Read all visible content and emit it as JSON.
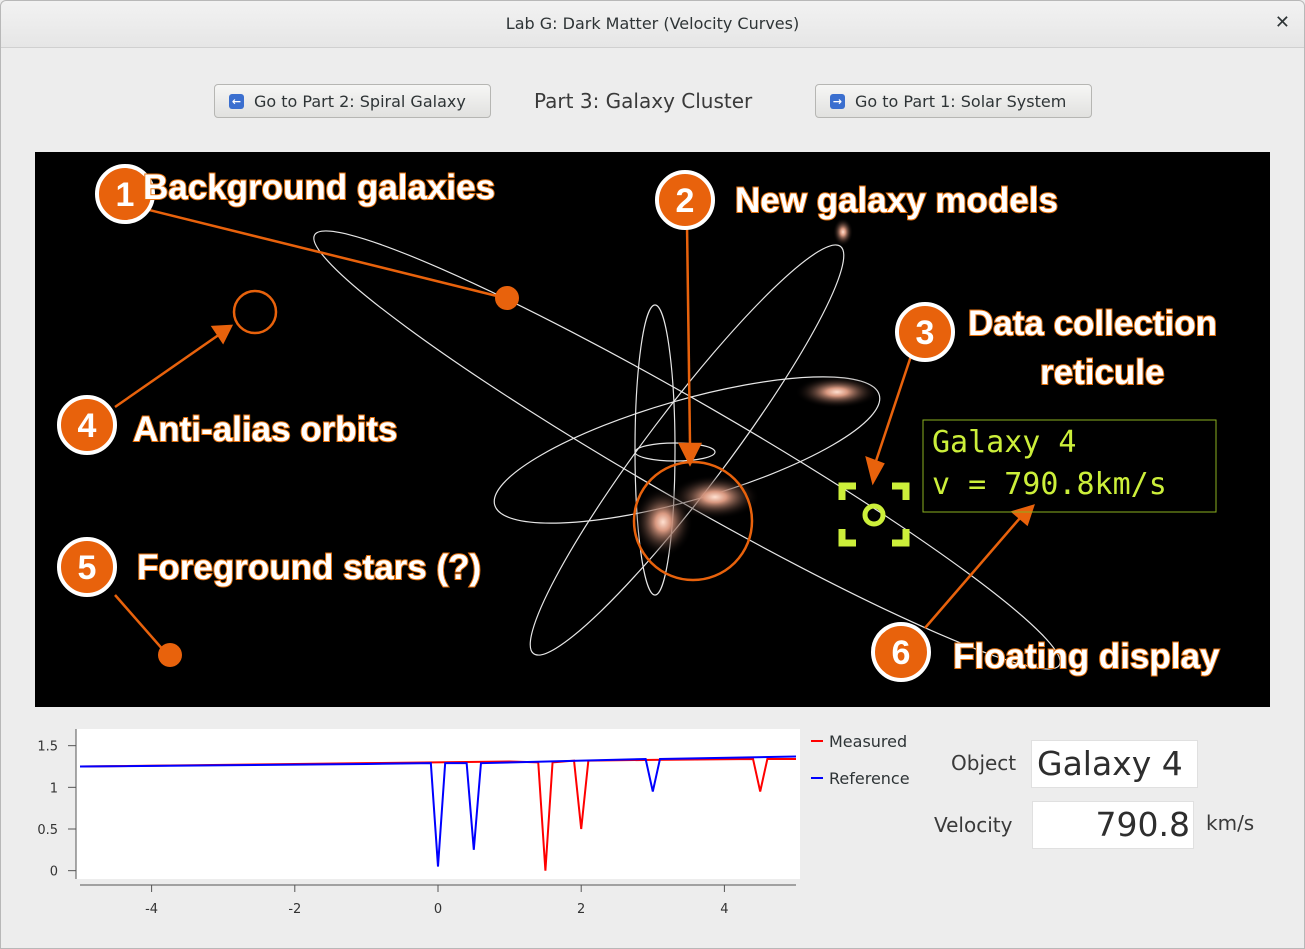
{
  "window": {
    "title": "Lab G: Dark Matter (Velocity Curves)"
  },
  "nav": {
    "prev_label": "Go to Part 2: Spiral Galaxy",
    "current_label": "Part 3: Galaxy Cluster",
    "next_label": "Go to Part 1: Solar System"
  },
  "annotations": [
    {
      "num": "1",
      "label": "Background galaxies"
    },
    {
      "num": "2",
      "label": "New galaxy models"
    },
    {
      "num": "3",
      "label": "Data collection",
      "label2": "reticule"
    },
    {
      "num": "4",
      "label": "Anti-alias orbits"
    },
    {
      "num": "5",
      "label": "Foreground stars (?)"
    },
    {
      "num": "6",
      "label": "Floating display"
    }
  ],
  "floating_display": {
    "line1": "Galaxy 4",
    "line2": "v = 790.8km/s"
  },
  "colors": {
    "annotation": "#e8620c",
    "reticle": "#ccef3a",
    "measured": "#ff0000",
    "reference": "#0000ff"
  },
  "properties": {
    "object_label": "Object",
    "object_value": "Galaxy 4",
    "velocity_label": "Velocity",
    "velocity_value": "790.8",
    "velocity_units": "km/s"
  },
  "chart_data": {
    "type": "line",
    "x_ticks": [
      "-4",
      "-2",
      "0",
      "2",
      "4"
    ],
    "y_ticks": [
      "1.5",
      "1",
      "0.5",
      "0"
    ],
    "xlim": [
      -5,
      5
    ],
    "ylim": [
      -0.1,
      1.7
    ],
    "grid": false,
    "legend": "right",
    "series": [
      {
        "name": "Measured",
        "color": "#ff0000",
        "x": [
          -5,
          -3,
          -1,
          1,
          1.4,
          1.5,
          1.6,
          1.9,
          2.0,
          2.1,
          3,
          4.4,
          4.5,
          4.6,
          5
        ],
        "y": [
          1.25,
          1.27,
          1.29,
          1.31,
          1.3,
          0.0,
          1.3,
          1.32,
          0.5,
          1.32,
          1.33,
          1.34,
          0.95,
          1.34,
          1.34
        ]
      },
      {
        "name": "Reference",
        "color": "#0000ff",
        "x": [
          -5,
          -1,
          -0.1,
          0.0,
          0.1,
          0.4,
          0.5,
          0.6,
          2.9,
          3.0,
          3.1,
          5
        ],
        "y": [
          1.25,
          1.28,
          1.29,
          0.05,
          1.29,
          1.29,
          0.25,
          1.29,
          1.34,
          0.95,
          1.34,
          1.37
        ]
      }
    ]
  }
}
